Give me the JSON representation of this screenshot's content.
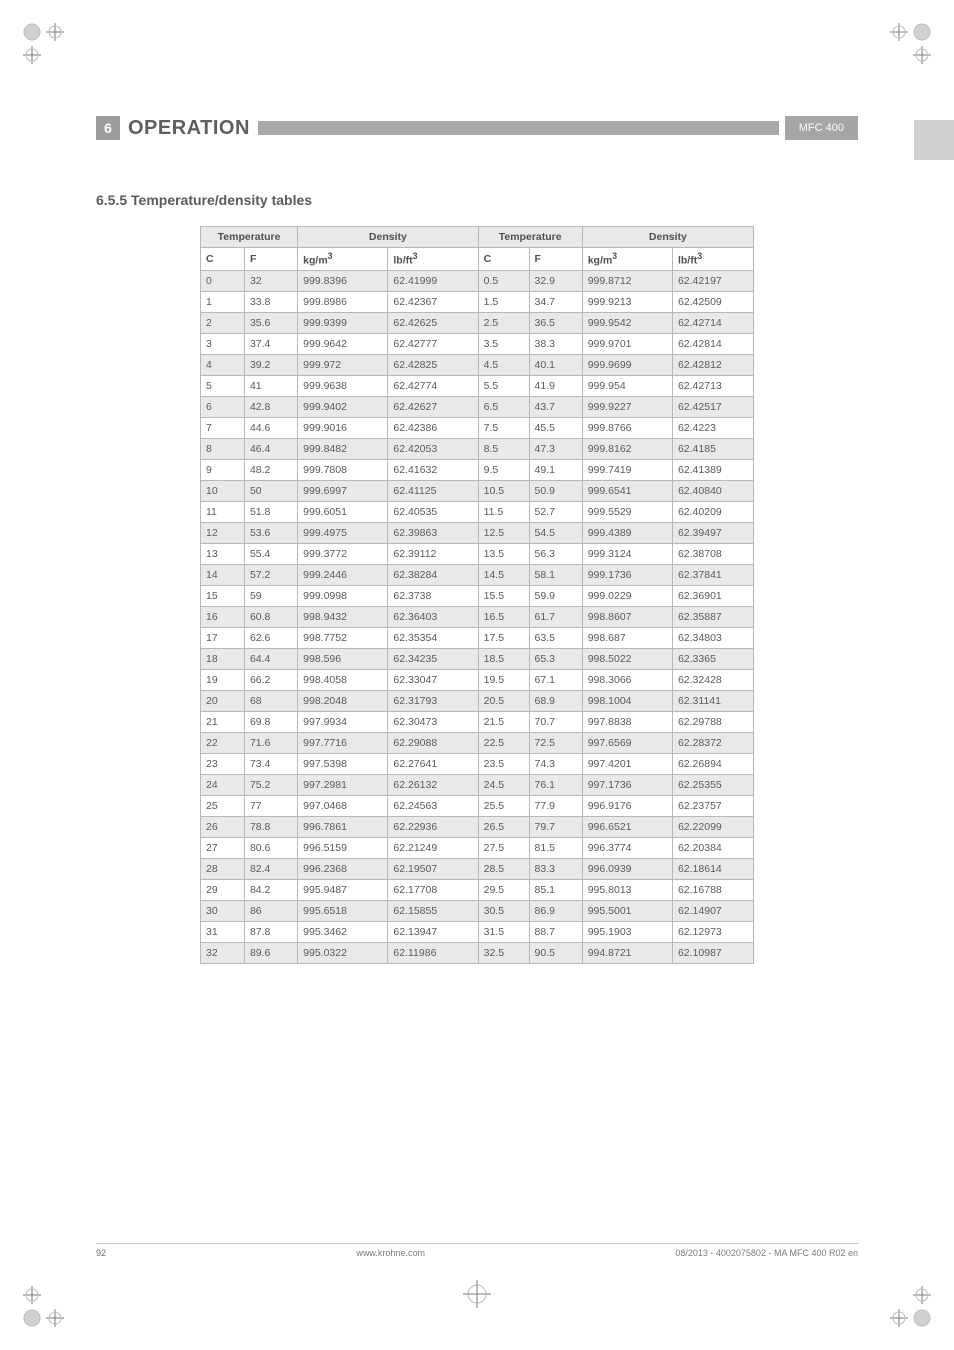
{
  "header": {
    "section_number": "6",
    "section_title": "OPERATION",
    "badge": "MFC 400"
  },
  "subheading": "6.5.5  Temperature/density tables",
  "table": {
    "group_headers": [
      "Temperature",
      "Density",
      "Temperature",
      "Density"
    ],
    "sub_headers": [
      "C",
      "F",
      "kg/m",
      "lb/ft",
      "C",
      "F",
      "kg/m",
      "lb/ft"
    ],
    "sup": "3",
    "rows": [
      [
        "0",
        "32",
        "999.8396",
        "62.41999",
        "0.5",
        "32.9",
        "999.8712",
        "62.42197"
      ],
      [
        "1",
        "33.8",
        "999.8986",
        "62.42367",
        "1.5",
        "34.7",
        "999.9213",
        "62.42509"
      ],
      [
        "2",
        "35.6",
        "999.9399",
        "62.42625",
        "2.5",
        "36.5",
        "999.9542",
        "62.42714"
      ],
      [
        "3",
        "37.4",
        "999.9642",
        "62.42777",
        "3.5",
        "38.3",
        "999.9701",
        "62.42814"
      ],
      [
        "4",
        "39.2",
        "999.972",
        "62.42825",
        "4.5",
        "40.1",
        "999.9699",
        "62.42812"
      ],
      [
        "5",
        "41",
        "999.9638",
        "62.42774",
        "5.5",
        "41.9",
        "999.954",
        "62.42713"
      ],
      [
        "6",
        "42.8",
        "999.9402",
        "62.42627",
        "6.5",
        "43.7",
        "999.9227",
        "62.42517"
      ],
      [
        "7",
        "44.6",
        "999.9016",
        "62.42386",
        "7.5",
        "45.5",
        "999.8766",
        "62.4223"
      ],
      [
        "8",
        "46.4",
        "999.8482",
        "62.42053",
        "8.5",
        "47.3",
        "999.8162",
        "62.4185"
      ],
      [
        "9",
        "48.2",
        "999.7808",
        "62.41632",
        "9.5",
        "49.1",
        "999.7419",
        "62.41389"
      ],
      [
        "10",
        "50",
        "999.6997",
        "62.41125",
        "10.5",
        "50.9",
        "999.6541",
        "62.40840"
      ],
      [
        "11",
        "51.8",
        "999.6051",
        "62.40535",
        "11.5",
        "52.7",
        "999.5529",
        "62.40209"
      ],
      [
        "12",
        "53.6",
        "999.4975",
        "62.39863",
        "12.5",
        "54.5",
        "999.4389",
        "62.39497"
      ],
      [
        "13",
        "55.4",
        "999.3772",
        "62.39112",
        "13.5",
        "56.3",
        "999.3124",
        "62.38708"
      ],
      [
        "14",
        "57.2",
        "999.2446",
        "62.38284",
        "14.5",
        "58.1",
        "999.1736",
        "62.37841"
      ],
      [
        "15",
        "59",
        "999.0998",
        "62.3738",
        "15.5",
        "59.9",
        "999.0229",
        "62.36901"
      ],
      [
        "16",
        "60.8",
        "998.9432",
        "62.36403",
        "16.5",
        "61.7",
        "998.8607",
        "62.35887"
      ],
      [
        "17",
        "62.6",
        "998.7752",
        "62.35354",
        "17.5",
        "63.5",
        "998.687",
        "62.34803"
      ],
      [
        "18",
        "64.4",
        "998.596",
        "62.34235",
        "18.5",
        "65.3",
        "998.5022",
        "62.3365"
      ],
      [
        "19",
        "66.2",
        "998.4058",
        "62.33047",
        "19.5",
        "67.1",
        "998.3066",
        "62.32428"
      ],
      [
        "20",
        "68",
        "998.2048",
        "62.31793",
        "20.5",
        "68.9",
        "998.1004",
        "62.31141"
      ],
      [
        "21",
        "69.8",
        "997.9934",
        "62.30473",
        "21.5",
        "70.7",
        "997.8838",
        "62.29788"
      ],
      [
        "22",
        "71.6",
        "997.7716",
        "62.29088",
        "22.5",
        "72.5",
        "997.6569",
        "62.28372"
      ],
      [
        "23",
        "73.4",
        "997.5398",
        "62.27641",
        "23.5",
        "74.3",
        "997.4201",
        "62.26894"
      ],
      [
        "24",
        "75.2",
        "997.2981",
        "62.26132",
        "24.5",
        "76.1",
        "997.1736",
        "62.25355"
      ],
      [
        "25",
        "77",
        "997.0468",
        "62.24563",
        "25.5",
        "77.9",
        "996.9176",
        "62.23757"
      ],
      [
        "26",
        "78.8",
        "996.7861",
        "62.22936",
        "26.5",
        "79.7",
        "996.6521",
        "62.22099"
      ],
      [
        "27",
        "80.6",
        "996.5159",
        "62.21249",
        "27.5",
        "81.5",
        "996.3774",
        "62.20384"
      ],
      [
        "28",
        "82.4",
        "996.2368",
        "62.19507",
        "28.5",
        "83.3",
        "996.0939",
        "62.18614"
      ],
      [
        "29",
        "84.2",
        "995.9487",
        "62.17708",
        "29.5",
        "85.1",
        "995.8013",
        "62.16788"
      ],
      [
        "30",
        "86",
        "995.6518",
        "62.15855",
        "30.5",
        "86.9",
        "995.5001",
        "62.14907"
      ],
      [
        "31",
        "87.8",
        "995.3462",
        "62.13947",
        "31.5",
        "88.7",
        "995.1903",
        "62.12973"
      ],
      [
        "32",
        "89.6",
        "995.0322",
        "62.11986",
        "32.5",
        "90.5",
        "994.8721",
        "62.10987"
      ]
    ]
  },
  "footer": {
    "page": "92",
    "url": "www.krohne.com",
    "docref": "08/2013 - 4002075802 - MA MFC 400 R02 en"
  },
  "colors": {
    "zebra": "#e9e9e9",
    "white": "#ffffff",
    "border": "#b8b8b8",
    "header_rule": "#a8a8a8",
    "badge_bg": "#a5a5a5",
    "section_num_bg": "#9c9c9c",
    "text": "#5a5a5a"
  }
}
